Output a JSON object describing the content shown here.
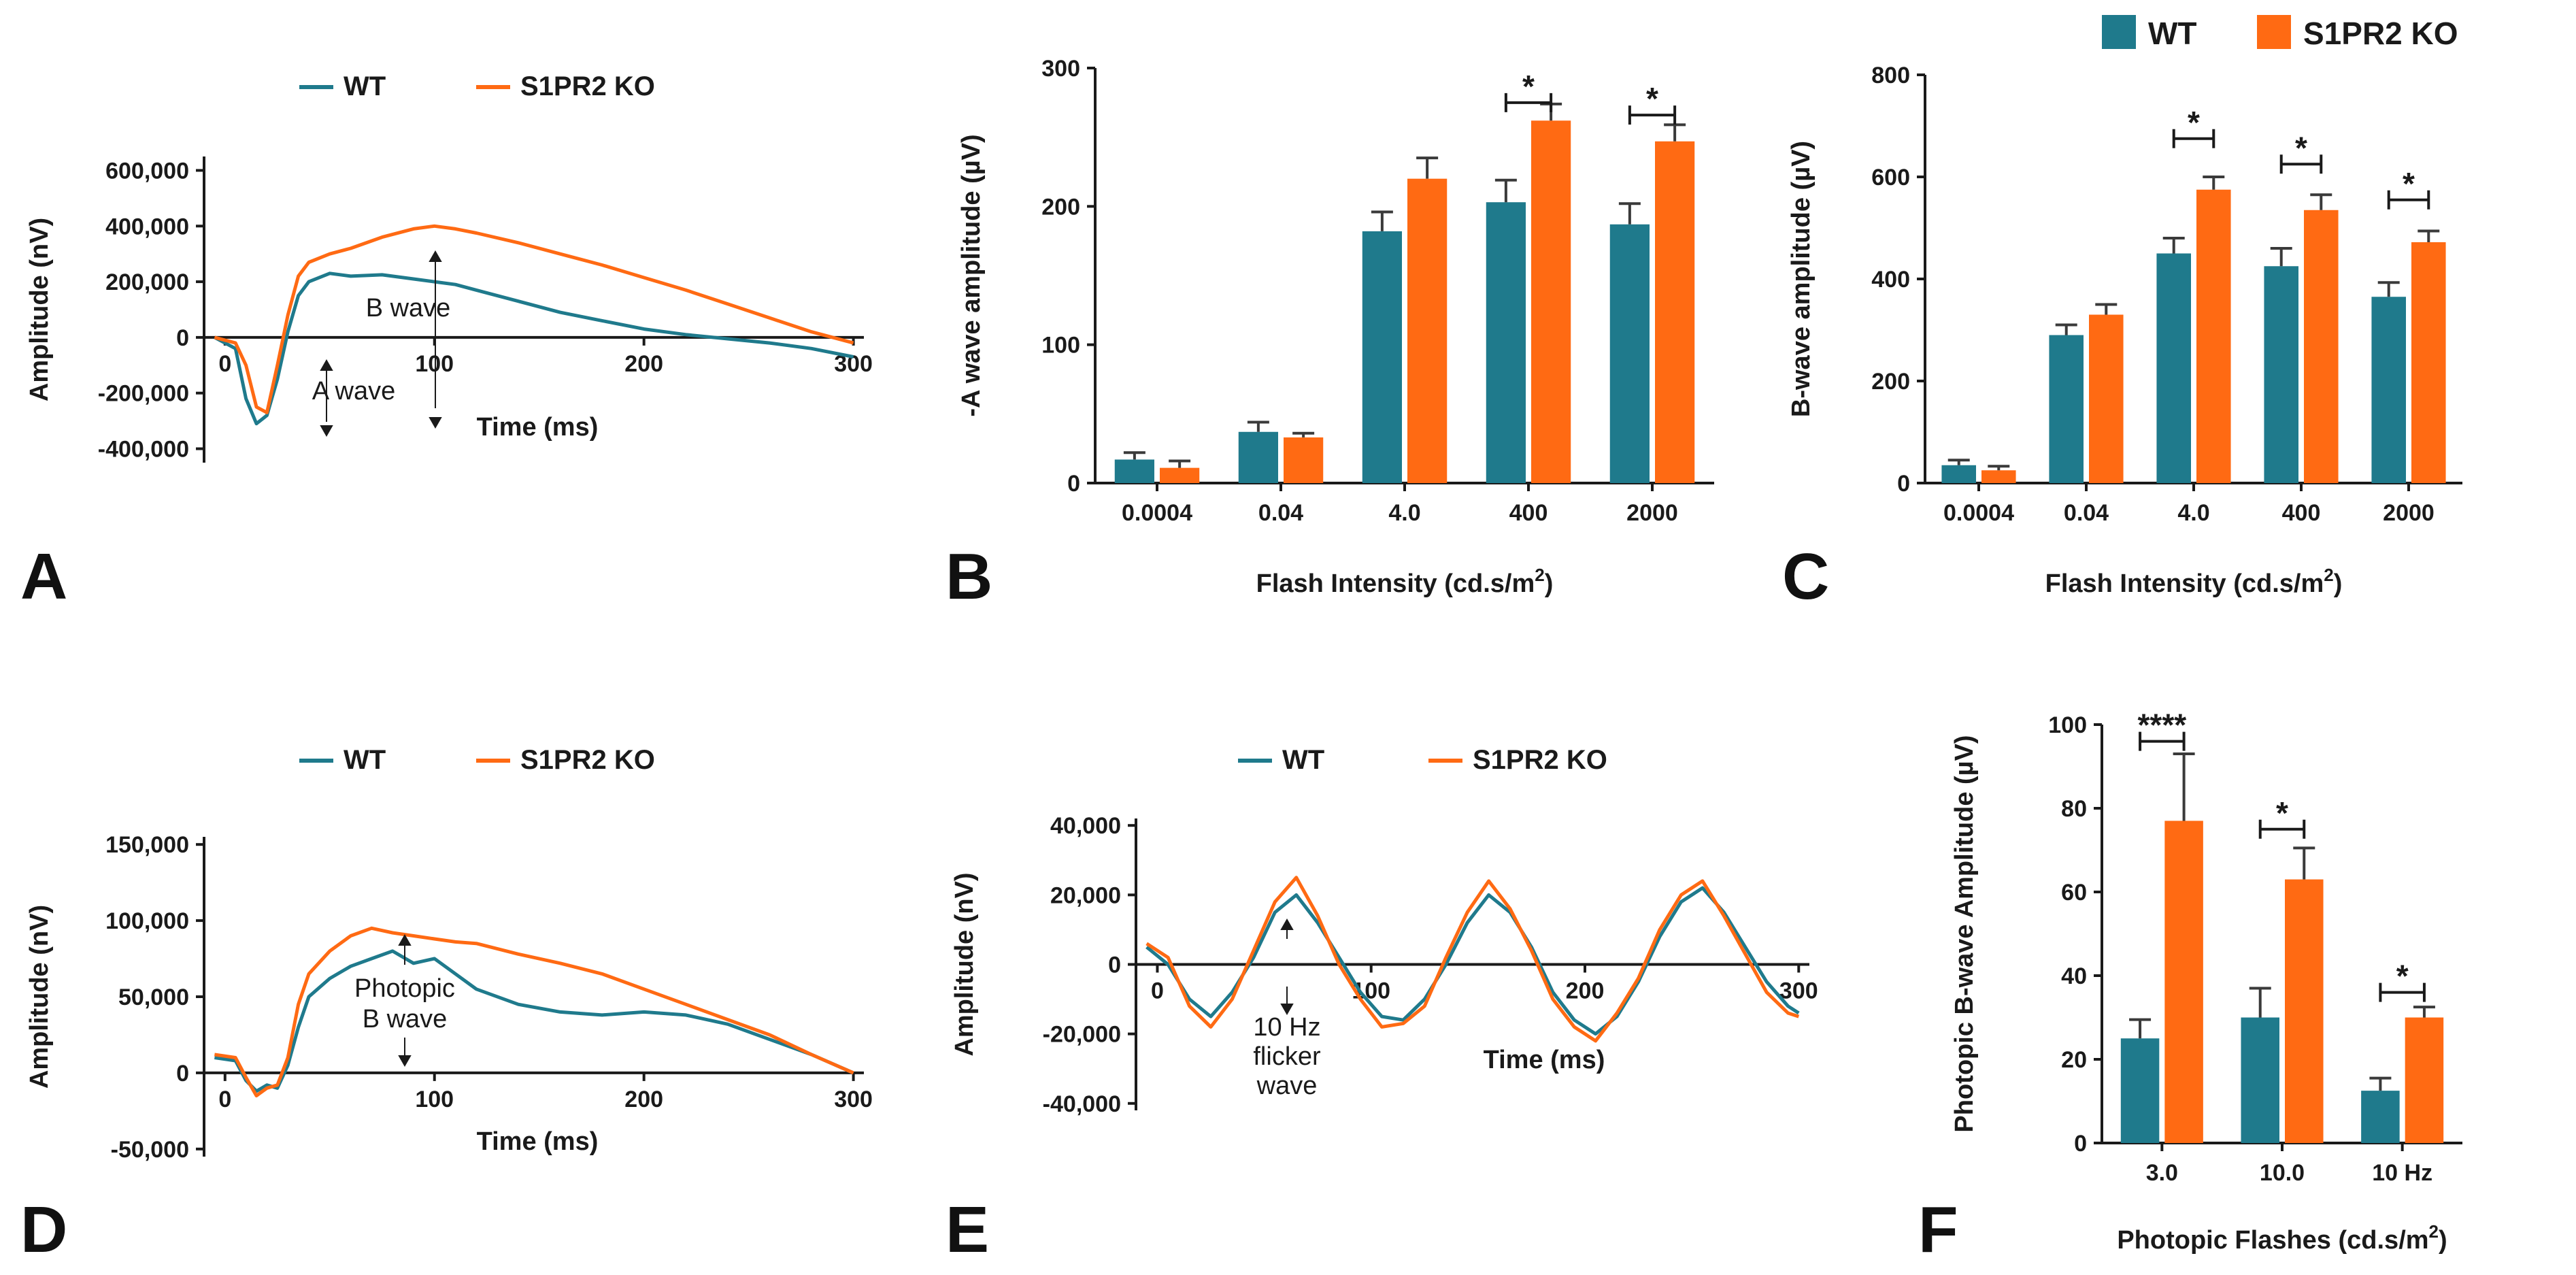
{
  "colors": {
    "wt": "#1f7a8c",
    "ko": "#ff6a13",
    "axis": "#1a1a1a"
  },
  "legend_top": {
    "wt": "WT",
    "ko": "S1PR2 KO"
  },
  "chart_data": [
    {
      "id": "A",
      "type": "line",
      "panel_label": "A",
      "legend": [
        "WT",
        "S1PR2 KO"
      ],
      "xlabel": "Time (ms)",
      "ylabel": "Amplitude (nV)",
      "xlim": [
        -10,
        305
      ],
      "ylim": [
        -450000,
        650000
      ],
      "xticks": [
        0,
        100,
        200,
        300
      ],
      "xtick_labels": [
        "0",
        "100",
        "200",
        "300"
      ],
      "yticks": [
        -400000,
        -200000,
        0,
        200000,
        400000,
        600000
      ],
      "ytick_labels": [
        "-400,000",
        "-200,000",
        "0",
        "200,000",
        "400,000",
        "600,000"
      ],
      "annotations": [
        "B wave",
        "A wave"
      ],
      "series": [
        {
          "name": "WT",
          "x": [
            -5,
            5,
            10,
            15,
            20,
            25,
            30,
            35,
            40,
            50,
            60,
            75,
            90,
            100,
            110,
            120,
            140,
            160,
            180,
            200,
            220,
            240,
            260,
            280,
            300
          ],
          "y": [
            0,
            -40000,
            -220000,
            -310000,
            -280000,
            -150000,
            20000,
            150000,
            200000,
            230000,
            220000,
            225000,
            210000,
            200000,
            190000,
            170000,
            130000,
            90000,
            60000,
            30000,
            10000,
            -5000,
            -20000,
            -40000,
            -70000
          ]
        },
        {
          "name": "S1PR2 KO",
          "x": [
            -5,
            5,
            10,
            15,
            20,
            25,
            30,
            35,
            40,
            50,
            60,
            75,
            90,
            100,
            110,
            120,
            140,
            160,
            180,
            200,
            220,
            240,
            260,
            280,
            300
          ],
          "y": [
            0,
            -20000,
            -100000,
            -250000,
            -270000,
            -100000,
            80000,
            220000,
            270000,
            300000,
            320000,
            360000,
            390000,
            400000,
            390000,
            375000,
            340000,
            300000,
            260000,
            215000,
            170000,
            120000,
            70000,
            20000,
            -20000
          ]
        }
      ]
    },
    {
      "id": "B",
      "type": "bar",
      "panel_label": "B",
      "categories": [
        "0.0004",
        "0.04",
        "4.0",
        "400",
        "2000"
      ],
      "series": [
        {
          "name": "WT",
          "values": [
            17,
            37,
            182,
            203,
            187
          ],
          "errors": [
            5,
            7,
            14,
            16,
            15
          ]
        },
        {
          "name": "S1PR2 KO",
          "values": [
            11,
            33,
            220,
            262,
            247
          ],
          "errors": [
            5,
            3,
            15,
            12,
            12
          ]
        }
      ],
      "ylim": [
        0,
        300
      ],
      "yticks": [
        0,
        100,
        200,
        300
      ],
      "xlabel": "Flash Intensity (cd.s/m",
      "xlabel_sup": "2",
      "xlabel_end": ")",
      "ylabel": "-A wave amplitude (µV)",
      "significance": [
        {
          "category": "400",
          "label": "*",
          "level": 275
        },
        {
          "category": "2000",
          "label": "*",
          "level": 266
        }
      ]
    },
    {
      "id": "C",
      "type": "bar",
      "panel_label": "C",
      "categories": [
        "0.0004",
        "0.04",
        "4.0",
        "400",
        "2000"
      ],
      "series": [
        {
          "name": "WT",
          "values": [
            35,
            290,
            450,
            425,
            365
          ],
          "errors": [
            10,
            20,
            30,
            35,
            28
          ]
        },
        {
          "name": "S1PR2 KO",
          "values": [
            25,
            330,
            575,
            535,
            472
          ],
          "errors": [
            8,
            20,
            25,
            30,
            22
          ]
        }
      ],
      "ylim": [
        0,
        800
      ],
      "yticks": [
        0,
        200,
        400,
        600,
        800
      ],
      "xlabel": "Flash Intensity (cd.s/m",
      "xlabel_sup": "2",
      "xlabel_end": ")",
      "ylabel": "B-wave amplitude (µV)",
      "significance": [
        {
          "category": "4.0",
          "label": "*",
          "level": 675
        },
        {
          "category": "400",
          "label": "*",
          "level": 625
        },
        {
          "category": "2000",
          "label": "*",
          "level": 555
        }
      ]
    },
    {
      "id": "D",
      "type": "line",
      "panel_label": "D",
      "legend": [
        "WT",
        "S1PR2 KO"
      ],
      "xlabel": "Time (ms)",
      "ylabel": "Amplitude (nV)",
      "xlim": [
        -10,
        305
      ],
      "ylim": [
        -55000,
        155000
      ],
      "xticks": [
        0,
        100,
        200,
        300
      ],
      "xtick_labels": [
        "0",
        "100",
        "200",
        "300"
      ],
      "yticks": [
        -50000,
        0,
        50000,
        100000,
        150000
      ],
      "ytick_labels": [
        "-50,000",
        "0",
        "50,000",
        "100,000",
        "150,000"
      ],
      "annotations": [
        "Photopic",
        "B wave"
      ],
      "series": [
        {
          "name": "WT",
          "x": [
            -5,
            5,
            10,
            15,
            20,
            25,
            30,
            35,
            40,
            50,
            60,
            70,
            80,
            90,
            100,
            110,
            120,
            140,
            160,
            180,
            200,
            220,
            240,
            260,
            280,
            300
          ],
          "y": [
            10000,
            8000,
            -5000,
            -12000,
            -8000,
            -10000,
            5000,
            30000,
            50000,
            62000,
            70000,
            75000,
            80000,
            72000,
            75000,
            65000,
            55000,
            45000,
            40000,
            38000,
            40000,
            38000,
            32000,
            22000,
            12000,
            0
          ]
        },
        {
          "name": "S1PR2 KO",
          "x": [
            -5,
            5,
            10,
            15,
            20,
            25,
            30,
            35,
            40,
            50,
            60,
            70,
            80,
            90,
            100,
            110,
            120,
            140,
            160,
            180,
            200,
            220,
            240,
            260,
            280,
            300
          ],
          "y": [
            12000,
            10000,
            -3000,
            -15000,
            -10000,
            -8000,
            10000,
            45000,
            65000,
            80000,
            90000,
            95000,
            92000,
            90000,
            88000,
            86000,
            85000,
            78000,
            72000,
            65000,
            55000,
            45000,
            35000,
            25000,
            12000,
            0
          ]
        }
      ]
    },
    {
      "id": "E",
      "type": "line",
      "panel_label": "E",
      "legend": [
        "WT",
        "S1PR2 KO"
      ],
      "xlabel": "Time (ms)",
      "ylabel": "Amplitude (nV)",
      "xlim": [
        -10,
        305
      ],
      "ylim": [
        -42000,
        42000
      ],
      "xticks": [
        0,
        100,
        200,
        300
      ],
      "xtick_labels": [
        "0",
        "100",
        "200",
        "300"
      ],
      "yticks": [
        -40000,
        -20000,
        0,
        20000,
        40000
      ],
      "ytick_labels": [
        "-40,000",
        "-20,000",
        "0",
        "20,000",
        "40,000"
      ],
      "annotations": [
        "10 Hz",
        "flicker",
        "wave"
      ],
      "series": [
        {
          "name": "WT",
          "x": [
            -5,
            5,
            15,
            25,
            35,
            45,
            55,
            65,
            75,
            85,
            95,
            105,
            115,
            125,
            135,
            145,
            155,
            165,
            175,
            185,
            195,
            205,
            215,
            225,
            235,
            245,
            255,
            265,
            275,
            285,
            295,
            300
          ],
          "y": [
            5000,
            0,
            -10000,
            -15000,
            -8000,
            2000,
            15000,
            20000,
            12000,
            2000,
            -8000,
            -15000,
            -16000,
            -10000,
            0,
            12000,
            20000,
            15000,
            5000,
            -8000,
            -16000,
            -20000,
            -15000,
            -5000,
            8000,
            18000,
            22000,
            15000,
            5000,
            -5000,
            -12000,
            -14000
          ]
        },
        {
          "name": "S1PR2 KO",
          "x": [
            -5,
            5,
            15,
            25,
            35,
            45,
            55,
            65,
            75,
            85,
            95,
            105,
            115,
            125,
            135,
            145,
            155,
            165,
            175,
            185,
            195,
            205,
            215,
            225,
            235,
            245,
            255,
            265,
            275,
            285,
            295,
            300
          ],
          "y": [
            6000,
            2000,
            -12000,
            -18000,
            -10000,
            4000,
            18000,
            25000,
            14000,
            0,
            -10000,
            -18000,
            -17000,
            -12000,
            2000,
            15000,
            24000,
            16000,
            4000,
            -10000,
            -18000,
            -22000,
            -14000,
            -4000,
            10000,
            20000,
            24000,
            14000,
            3000,
            -8000,
            -14000,
            -15000
          ]
        }
      ]
    },
    {
      "id": "F",
      "type": "bar",
      "panel_label": "F",
      "categories": [
        "3.0",
        "10.0",
        "10 Hz"
      ],
      "series": [
        {
          "name": "WT",
          "values": [
            25,
            30,
            12.5
          ],
          "errors": [
            4.5,
            7,
            3
          ]
        },
        {
          "name": "S1PR2 KO",
          "values": [
            77,
            63,
            30
          ],
          "errors": [
            16,
            7.5,
            2.5
          ]
        }
      ],
      "ylim": [
        0,
        100
      ],
      "yticks": [
        0,
        20,
        40,
        60,
        80,
        100
      ],
      "xlabel": "Photopic Flashes (cd.s/m",
      "xlabel_sup": "2",
      "xlabel_end": ")",
      "ylabel": "Photopic B-wave Amplitude (µV)",
      "significance": [
        {
          "category": "3.0",
          "label": "****",
          "level": 96
        },
        {
          "category": "10.0",
          "label": "*",
          "level": 75
        },
        {
          "category": "10 Hz",
          "label": "*",
          "level": 36
        }
      ]
    }
  ]
}
